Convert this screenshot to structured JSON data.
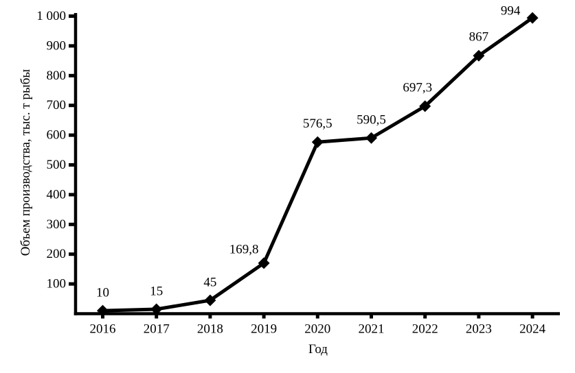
{
  "chart_data": {
    "type": "line",
    "title": "",
    "xlabel": "Год",
    "ylabel": "Объем производства, тыс. т рыбы",
    "categories": [
      "2016",
      "2017",
      "2018",
      "2019",
      "2020",
      "2021",
      "2022",
      "2023",
      "2024"
    ],
    "series": [
      {
        "name": "Объем производства",
        "values": [
          10,
          15,
          45,
          169.8,
          576.5,
          590.5,
          697.3,
          867,
          994
        ],
        "point_labels": [
          "10",
          "15",
          "45",
          "169,8",
          "576,5",
          "590,5",
          "697,3",
          "867",
          "994"
        ],
        "color": "#000000",
        "marker": "diamond"
      }
    ],
    "ylim": [
      0,
      1000
    ],
    "ytick_step": 100,
    "ytick_labels": [
      "100",
      "200",
      "300",
      "400",
      "500",
      "600",
      "700",
      "800",
      "900",
      "1 000"
    ],
    "grid": false,
    "legend": null,
    "background": "#ffffff"
  }
}
